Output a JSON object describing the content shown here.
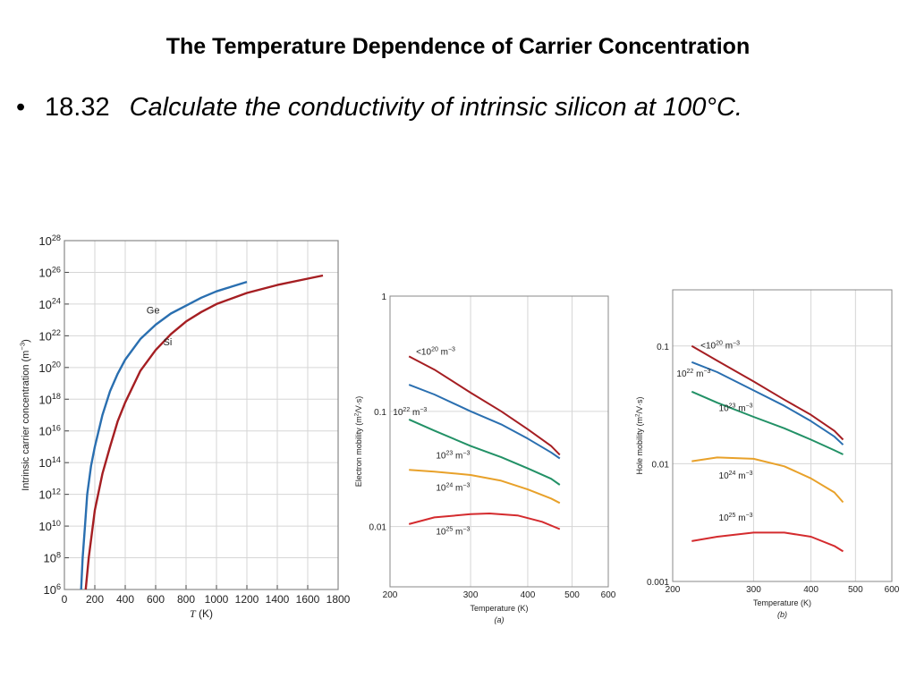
{
  "title": "The Temperature Dependence of Carrier Concentration",
  "bullet": {
    "symbol": "•",
    "number": "18.32",
    "problem": "Calculate the conductivity of intrinsic silicon at 100°C."
  },
  "colors": {
    "red": "#a51e22",
    "blue": "#2a6fb0",
    "green": "#229166",
    "orange": "#e8a12a",
    "bright_red": "#d42b2e",
    "grid": "#d6d6d6",
    "frame": "#888888"
  },
  "chart_data": [
    {
      "type": "line",
      "xlabel_italic": "T",
      "xlabel_unit": " (K)",
      "ylabel": "Intrinsic carrier concentration (m",
      "ylabel_sup": "−3",
      "ylabel_close": ")",
      "xlim": [
        0,
        1800
      ],
      "xscale": "linear",
      "yscale": "log",
      "ylim_exp": [
        6,
        28
      ],
      "xticks": [
        "0",
        "200",
        "400",
        "600",
        "800",
        "1000",
        "1200",
        "1400",
        "1600",
        "1800"
      ],
      "yticks_base": "10",
      "yticks_exp": [
        "6",
        "8",
        "10",
        "12",
        "14",
        "16",
        "18",
        "20",
        "22",
        "24",
        "26",
        "28"
      ],
      "series": [
        {
          "name": "Ge",
          "color": "#2a6fb0",
          "label_at": [
            540,
            23.4
          ],
          "x": [
            110,
            120,
            135,
            150,
            175,
            200,
            250,
            300,
            350,
            400,
            500,
            600,
            700,
            800,
            900,
            1000,
            1100,
            1200
          ],
          "log10y": [
            6.0,
            8.0,
            10.0,
            12.0,
            13.8,
            15.0,
            17.0,
            18.5,
            19.6,
            20.5,
            21.8,
            22.7,
            23.4,
            23.9,
            24.4,
            24.8,
            25.1,
            25.4
          ]
        },
        {
          "name": "Si",
          "color": "#a51e22",
          "label_at": [
            650,
            21.4
          ],
          "x": [
            140,
            160,
            180,
            200,
            250,
            300,
            350,
            400,
            500,
            600,
            700,
            800,
            900,
            1000,
            1200,
            1400,
            1600,
            1700
          ],
          "log10y": [
            6.0,
            8.0,
            9.5,
            11.0,
            13.3,
            15.0,
            16.6,
            17.8,
            19.8,
            21.1,
            22.1,
            22.9,
            23.5,
            24.0,
            24.7,
            25.2,
            25.6,
            25.8
          ]
        }
      ]
    },
    {
      "type": "line",
      "xlabel": "Temperature (K)",
      "panel_label": "(a)",
      "ylabel": "Electron mobility (m",
      "ylabel_sup": "2",
      "ylabel_close": "/V·s)",
      "xscale": "log",
      "xlim": [
        200,
        600
      ],
      "yscale": "log",
      "ylim": [
        0.003,
        1
      ],
      "xticks": [
        "200",
        "300",
        "400",
        "500",
        "600"
      ],
      "yticks": [
        "0.01",
        "0.1",
        "1"
      ],
      "series": [
        {
          "name": "<10",
          "sup": "20",
          "unit": " m",
          "unit_sup": "−3",
          "color": "#a51e22",
          "label_at": [
            228,
            0.31
          ],
          "x": [
            220,
            250,
            300,
            350,
            400,
            450,
            470
          ],
          "y": [
            0.3,
            0.23,
            0.145,
            0.1,
            0.07,
            0.05,
            0.042
          ]
        },
        {
          "name": "10",
          "sup": "22",
          "unit": " m",
          "unit_sup": "−3",
          "color": "#2a6fb0",
          "label_at": [
            203,
            0.093
          ],
          "x": [
            220,
            250,
            300,
            350,
            400,
            450,
            470
          ],
          "y": [
            0.17,
            0.14,
            0.1,
            0.077,
            0.058,
            0.044,
            0.039
          ]
        },
        {
          "name": "10",
          "sup": "23",
          "unit": " m",
          "unit_sup": "−3",
          "color": "#229166",
          "label_at": [
            252,
            0.039
          ],
          "x": [
            220,
            250,
            300,
            350,
            400,
            450,
            470
          ],
          "y": [
            0.085,
            0.068,
            0.05,
            0.04,
            0.032,
            0.026,
            0.023
          ]
        },
        {
          "name": "10",
          "sup": "24",
          "unit": " m",
          "unit_sup": "−3",
          "color": "#e8a12a",
          "label_at": [
            252,
            0.0205
          ],
          "x": [
            220,
            250,
            300,
            350,
            400,
            450,
            470
          ],
          "y": [
            0.031,
            0.03,
            0.028,
            0.025,
            0.021,
            0.0175,
            0.016
          ]
        },
        {
          "name": "10",
          "sup": "25",
          "unit": " m",
          "unit_sup": "−3",
          "color": "#d42b2e",
          "label_at": [
            252,
            0.0085
          ],
          "x": [
            220,
            250,
            300,
            330,
            380,
            430,
            470
          ],
          "y": [
            0.0105,
            0.012,
            0.0128,
            0.013,
            0.0125,
            0.011,
            0.0095
          ]
        }
      ]
    },
    {
      "type": "line",
      "xlabel": "Temperature (K)",
      "panel_label": "(b)",
      "ylabel": "Hole mobility (m",
      "ylabel_sup": "2",
      "ylabel_close": "/V·s)",
      "xscale": "log",
      "xlim": [
        200,
        600
      ],
      "yscale": "log",
      "ylim": [
        0.001,
        0.3
      ],
      "xticks": [
        "200",
        "300",
        "400",
        "500",
        "600"
      ],
      "yticks": [
        "0.001",
        "0.01",
        "0.1"
      ],
      "series": [
        {
          "name": "<10",
          "sup": "20",
          "unit": " m",
          "unit_sup": "−3",
          "color": "#a51e22",
          "label_at": [
            230,
            0.095
          ],
          "x": [
            220,
            250,
            300,
            350,
            400,
            450,
            470
          ],
          "y": [
            0.1,
            0.075,
            0.05,
            0.035,
            0.026,
            0.019,
            0.016
          ]
        },
        {
          "name": "10",
          "sup": "22",
          "unit": " m",
          "unit_sup": "−3",
          "color": "#2a6fb0",
          "label_at": [
            204,
            0.055
          ],
          "x": [
            220,
            250,
            300,
            350,
            400,
            450,
            470
          ],
          "y": [
            0.073,
            0.06,
            0.042,
            0.031,
            0.023,
            0.017,
            0.0145
          ]
        },
        {
          "name": "10",
          "sup": "23",
          "unit": " m",
          "unit_sup": "−3",
          "color": "#229166",
          "label_at": [
            252,
            0.028
          ],
          "x": [
            220,
            250,
            300,
            350,
            400,
            450,
            470
          ],
          "y": [
            0.041,
            0.033,
            0.025,
            0.02,
            0.016,
            0.013,
            0.012
          ]
        },
        {
          "name": "10",
          "sup": "24",
          "unit": " m",
          "unit_sup": "−3",
          "color": "#e8a12a",
          "label_at": [
            252,
            0.0075
          ],
          "x": [
            220,
            250,
            300,
            350,
            400,
            450,
            470
          ],
          "y": [
            0.0105,
            0.0113,
            0.011,
            0.0095,
            0.0075,
            0.0057,
            0.0047
          ]
        },
        {
          "name": "10",
          "sup": "25",
          "unit": " m",
          "unit_sup": "−3",
          "color": "#d42b2e",
          "label_at": [
            252,
            0.0033
          ],
          "x": [
            220,
            250,
            300,
            350,
            400,
            450,
            470
          ],
          "y": [
            0.0022,
            0.0024,
            0.0026,
            0.0026,
            0.0024,
            0.002,
            0.0018
          ]
        }
      ]
    }
  ]
}
